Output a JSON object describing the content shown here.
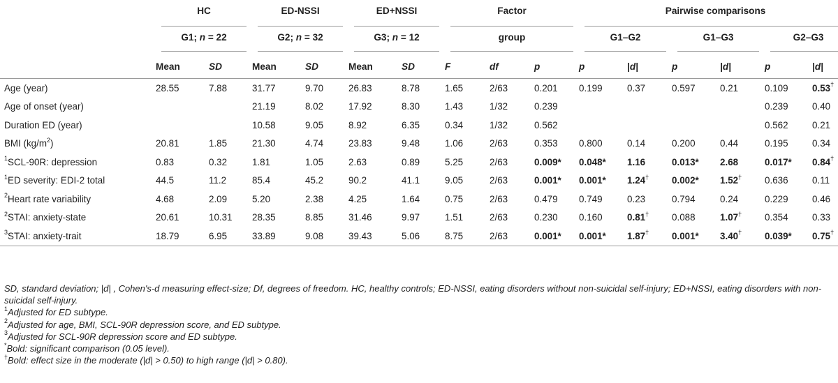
{
  "header": {
    "groups": [
      {
        "label": "HC"
      },
      {
        "label": "ED-NSSI"
      },
      {
        "label": "ED+NSSI"
      },
      {
        "label": "Factor"
      },
      {
        "label": "Pairwise comparisons"
      }
    ],
    "subgroups": [
      {
        "label": "G1; ",
        "n": "n",
        "eq": " = 22"
      },
      {
        "label": "G2; ",
        "n": "n",
        "eq": " = 32"
      },
      {
        "label": "G3; ",
        "n": "n",
        "eq": " = 12"
      },
      {
        "label": "group"
      },
      {
        "label": "G1–G2"
      },
      {
        "label": "G1–G3"
      },
      {
        "label": "G2–G3"
      }
    ],
    "cols": [
      "Mean",
      "SD",
      "Mean",
      "SD",
      "Mean",
      "SD",
      "F",
      "df",
      "p",
      "p",
      "|d|",
      "p",
      "|d|",
      "p",
      "|d|"
    ]
  },
  "rows": [
    {
      "label": "Age (year)",
      "cells": [
        [
          "28.55"
        ],
        [
          "7.88"
        ],
        [
          "31.77"
        ],
        [
          "9.70"
        ],
        [
          "26.83"
        ],
        [
          "8.78"
        ],
        [
          "1.65"
        ],
        [
          "2/63"
        ],
        [
          "0.201"
        ],
        [
          "0.199"
        ],
        [
          "0.37"
        ],
        [
          "0.597"
        ],
        [
          "0.21"
        ],
        [
          "0.109"
        ],
        [
          "0.53",
          "b",
          "†"
        ]
      ]
    },
    {
      "label": "Age of onset (year)",
      "cells": [
        [
          ""
        ],
        [
          ""
        ],
        [
          "21.19"
        ],
        [
          "8.02"
        ],
        [
          "17.92"
        ],
        [
          "8.30"
        ],
        [
          "1.43"
        ],
        [
          "1/32"
        ],
        [
          "0.239"
        ],
        [
          ""
        ],
        [
          ""
        ],
        [
          ""
        ],
        [
          ""
        ],
        [
          "0.239"
        ],
        [
          "0.40"
        ]
      ]
    },
    {
      "label": "Duration ED (year)",
      "cells": [
        [
          ""
        ],
        [
          ""
        ],
        [
          "10.58"
        ],
        [
          "9.05"
        ],
        [
          "8.92"
        ],
        [
          "6.35"
        ],
        [
          "0.34"
        ],
        [
          "1/32"
        ],
        [
          "0.562"
        ],
        [
          ""
        ],
        [
          ""
        ],
        [
          ""
        ],
        [
          ""
        ],
        [
          "0.562"
        ],
        [
          "0.21"
        ]
      ]
    },
    {
      "label": "BMI (kg/m",
      "labelSup": "2",
      "labelTail": ")",
      "cells": [
        [
          "20.81"
        ],
        [
          "1.85"
        ],
        [
          "21.30"
        ],
        [
          "4.74"
        ],
        [
          "23.83"
        ],
        [
          "9.48"
        ],
        [
          "1.06"
        ],
        [
          "2/63"
        ],
        [
          "0.353"
        ],
        [
          "0.800"
        ],
        [
          "0.14"
        ],
        [
          "0.200"
        ],
        [
          "0.44"
        ],
        [
          "0.195"
        ],
        [
          "0.34"
        ]
      ]
    },
    {
      "labelPre": "1",
      "label": "SCL-90R: depression",
      "cells": [
        [
          "0.83"
        ],
        [
          "0.32"
        ],
        [
          "1.81"
        ],
        [
          "1.05"
        ],
        [
          "2.63"
        ],
        [
          "0.89"
        ],
        [
          "5.25"
        ],
        [
          "2/63"
        ],
        [
          "0.009*",
          "b"
        ],
        [
          "0.048*",
          "b"
        ],
        [
          "1.16",
          "b"
        ],
        [
          "0.013*",
          "b"
        ],
        [
          "2.68",
          "b"
        ],
        [
          "0.017*",
          "b"
        ],
        [
          "0.84",
          "b",
          "†"
        ]
      ]
    },
    {
      "labelPre": "1",
      "label": "ED severity: EDI-2 total",
      "cells": [
        [
          "44.5"
        ],
        [
          "11.2"
        ],
        [
          "85.4"
        ],
        [
          "45.2"
        ],
        [
          "90.2"
        ],
        [
          "41.1"
        ],
        [
          "9.05"
        ],
        [
          "2/63"
        ],
        [
          "0.001*",
          "b"
        ],
        [
          "0.001*",
          "b"
        ],
        [
          "1.24",
          "b",
          "†"
        ],
        [
          "0.002*",
          "b"
        ],
        [
          "1.52",
          "b",
          "†"
        ],
        [
          "0.636"
        ],
        [
          "0.11"
        ]
      ]
    },
    {
      "labelPre": "2",
      "label": "Heart rate variability",
      "cells": [
        [
          "4.68"
        ],
        [
          "2.09"
        ],
        [
          "5.20"
        ],
        [
          "2.38"
        ],
        [
          "4.25"
        ],
        [
          "1.64"
        ],
        [
          "0.75"
        ],
        [
          "2/63"
        ],
        [
          "0.479"
        ],
        [
          "0.749"
        ],
        [
          "0.23"
        ],
        [
          "0.794"
        ],
        [
          "0.24"
        ],
        [
          "0.229"
        ],
        [
          "0.46"
        ]
      ]
    },
    {
      "labelPre": "2",
      "label": "STAI: anxiety-state",
      "cells": [
        [
          "20.61"
        ],
        [
          "10.31"
        ],
        [
          "28.35"
        ],
        [
          "8.85"
        ],
        [
          "31.46"
        ],
        [
          "9.97"
        ],
        [
          "1.51"
        ],
        [
          "2/63"
        ],
        [
          "0.230"
        ],
        [
          "0.160"
        ],
        [
          "0.81",
          "b",
          "†"
        ],
        [
          "0.088"
        ],
        [
          "1.07",
          "b",
          "†"
        ],
        [
          "0.354"
        ],
        [
          "0.33"
        ]
      ]
    },
    {
      "labelPre": "3",
      "label": "STAI: anxiety-trait",
      "cells": [
        [
          "18.79"
        ],
        [
          "6.95"
        ],
        [
          "33.89"
        ],
        [
          "9.08"
        ],
        [
          "39.43"
        ],
        [
          "5.06"
        ],
        [
          "8.75"
        ],
        [
          "2/63"
        ],
        [
          "0.001*",
          "b"
        ],
        [
          "0.001*",
          "b"
        ],
        [
          "1.87",
          "b",
          "†"
        ],
        [
          "0.001*",
          "b"
        ],
        [
          "3.40",
          "b",
          "†"
        ],
        [
          "0.039*",
          "b"
        ],
        [
          "0.75",
          "b",
          "†"
        ]
      ]
    }
  ],
  "footnotes": {
    "abbrev": "SD, standard deviation; |d| , Cohen's-d measuring effect-size; Df, degrees of freedom. HC, healthy controls; ED-NSSI, eating disorders without non-suicidal self-injury; ED+NSSI, eating disorders with non-suicidal self-injury.",
    "notes": [
      {
        "mark": "1",
        "text": "Adjusted for ED subtype."
      },
      {
        "mark": "2",
        "text": "Adjusted for age, BMI, SCL-90R depression score, and ED subtype."
      },
      {
        "mark": "3",
        "text": "Adjusted for SCL-90R depression score and ED subtype."
      },
      {
        "mark": "*",
        "text": "Bold: significant comparison (0.05 level)."
      },
      {
        "mark": "†",
        "text": "Bold: effect size in the moderate (|d| > 0.50) to high range (|d| > 0.80)."
      }
    ]
  }
}
